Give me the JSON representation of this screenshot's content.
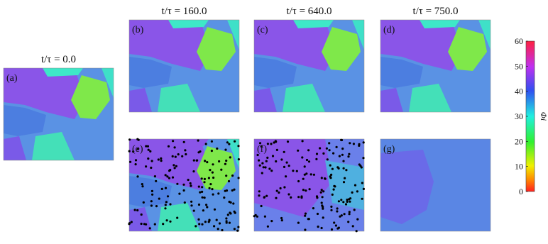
{
  "panels": [
    {
      "label": "(a)",
      "title": "t/τ = 0.0"
    },
    {
      "label": "(b)",
      "title": "t/τ = 160.0"
    },
    {
      "label": "(c)",
      "title": "t/τ = 640.0"
    },
    {
      "label": "(d)",
      "title": "t/τ = 750.0"
    },
    {
      "label": "(e)"
    },
    {
      "label": "(f)"
    },
    {
      "label": "(g)"
    }
  ],
  "colorbar": {
    "label": "Φi",
    "lim": [
      0,
      60
    ],
    "ticks": [
      0,
      10,
      20,
      30,
      40,
      50,
      60
    ]
  }
}
